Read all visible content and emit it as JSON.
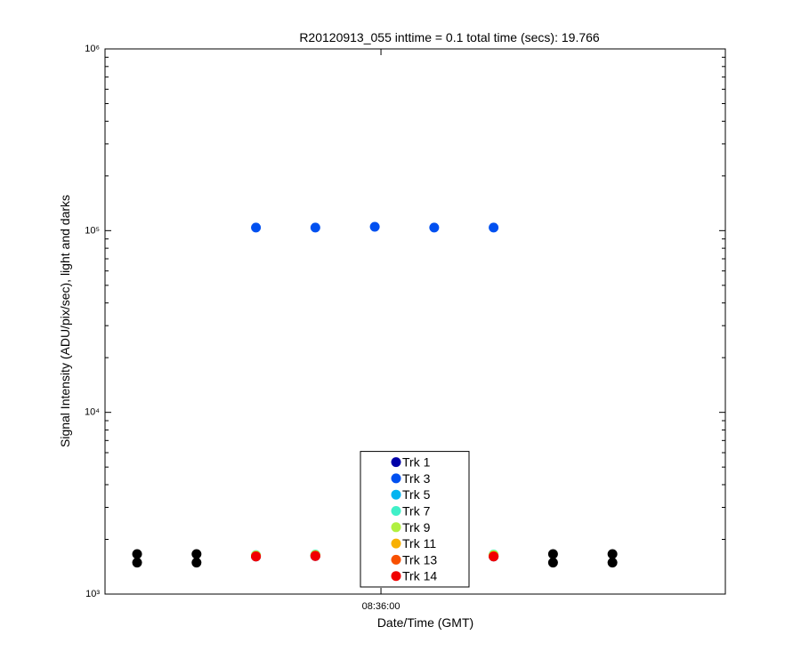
{
  "chart_data": {
    "type": "scatter",
    "title": "R20120913_055 inttime = 0.1 total time (secs): 19.766",
    "xlabel": "Date/Time (GMT)",
    "ylabel": "Signal Intensity (ADU/pix/sec), light and darks",
    "x": [
      30949.74,
      30952.24,
      30954.74,
      30957.24,
      30959.74,
      30962.24,
      30964.74,
      30967.24,
      30969.74
    ],
    "xlim": [
      30948.39,
      30974.49
    ],
    "xticks": [
      {
        "value": 30960,
        "label": "08:36:00"
      }
    ],
    "ylim": [
      1000,
      1000000
    ],
    "yscale": "log",
    "yticks": [
      {
        "value": 1000,
        "label": "10³"
      },
      {
        "value": 10000,
        "label": "10⁴"
      },
      {
        "value": 100000,
        "label": "10⁵"
      },
      {
        "value": 1000000,
        "label": "10⁶"
      }
    ],
    "legend_loc": "south",
    "series": [
      {
        "color": "#000000",
        "values": [
          1490,
          1490,
          null,
          null,
          null,
          null,
          null,
          1490,
          1490
        ]
      },
      {
        "color": "#000000",
        "values": [
          1660,
          1660,
          null,
          null,
          null,
          null,
          null,
          1660,
          1660
        ]
      },
      {
        "name": "Trk 1",
        "color": "#0000a8",
        "values": [
          null,
          null,
          1610,
          1620,
          null,
          null,
          1610,
          null,
          null
        ]
      },
      {
        "name": "Trk 3",
        "color": "#0050f0",
        "values": [
          null,
          null,
          104000,
          104000,
          105000,
          104000,
          104000,
          null,
          null
        ]
      },
      {
        "name": "Trk 5",
        "color": "#00b4f0",
        "values": [
          null,
          null,
          1620,
          1630,
          null,
          null,
          1620,
          null,
          null
        ]
      },
      {
        "name": "Trk 7",
        "color": "#40f0c8",
        "values": [
          null,
          null,
          1640,
          1650,
          null,
          null,
          1650,
          null,
          null
        ]
      },
      {
        "name": "Trk 9",
        "color": "#b0f040",
        "values": [
          null,
          null,
          1630,
          1640,
          null,
          null,
          1640,
          null,
          null
        ]
      },
      {
        "name": "Trk 11",
        "color": "#f8b000",
        "values": [
          null,
          null,
          1620,
          1630,
          null,
          null,
          1620,
          null,
          null
        ]
      },
      {
        "name": "Trk 13",
        "color": "#f85000",
        "values": [
          null,
          null,
          1615,
          1625,
          null,
          null,
          1615,
          null,
          null
        ]
      },
      {
        "name": "Trk 14",
        "color": "#f00000",
        "values": [
          null,
          null,
          1610,
          1620,
          null,
          null,
          1610,
          null,
          null
        ]
      }
    ]
  }
}
